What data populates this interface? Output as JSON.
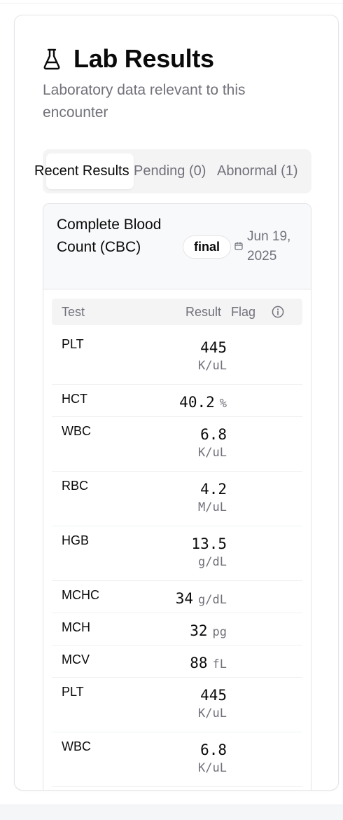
{
  "header": {
    "title": "Lab Results",
    "subtitle": "Laboratory data relevant to this encounter",
    "icon": "flask-icon"
  },
  "tabs": [
    {
      "label": "Recent Results",
      "active": true
    },
    {
      "label": "Pending (0)",
      "active": false
    },
    {
      "label": "Abnormal (1)",
      "active": false
    }
  ],
  "panel": {
    "title": "Complete Blood Count (CBC)",
    "status": "final",
    "date": "Jun 19, 2025",
    "columns": {
      "test": "Test",
      "result": "Result",
      "flag": "Flag"
    },
    "rows": [
      {
        "test": "PLT",
        "value": "445",
        "unit": "K/uL"
      },
      {
        "test": "HCT",
        "value": "40.2",
        "unit": "%"
      },
      {
        "test": "WBC",
        "value": "6.8",
        "unit": "K/uL"
      },
      {
        "test": "RBC",
        "value": "4.2",
        "unit": "M/uL"
      },
      {
        "test": "HGB",
        "value": "13.5",
        "unit": "g/dL"
      },
      {
        "test": "MCHC",
        "value": "34",
        "unit": "g/dL"
      },
      {
        "test": "MCH",
        "value": "32",
        "unit": "pg"
      },
      {
        "test": "MCV",
        "value": "88",
        "unit": "fL"
      },
      {
        "test": "PLT",
        "value": "445",
        "unit": "K/uL"
      },
      {
        "test": "WBC",
        "value": "6.8",
        "unit": "K/uL"
      }
    ]
  },
  "colors": {
    "muted": "#71717a",
    "border": "#e4e4e7",
    "tab_bg": "#f4f4f5"
  }
}
